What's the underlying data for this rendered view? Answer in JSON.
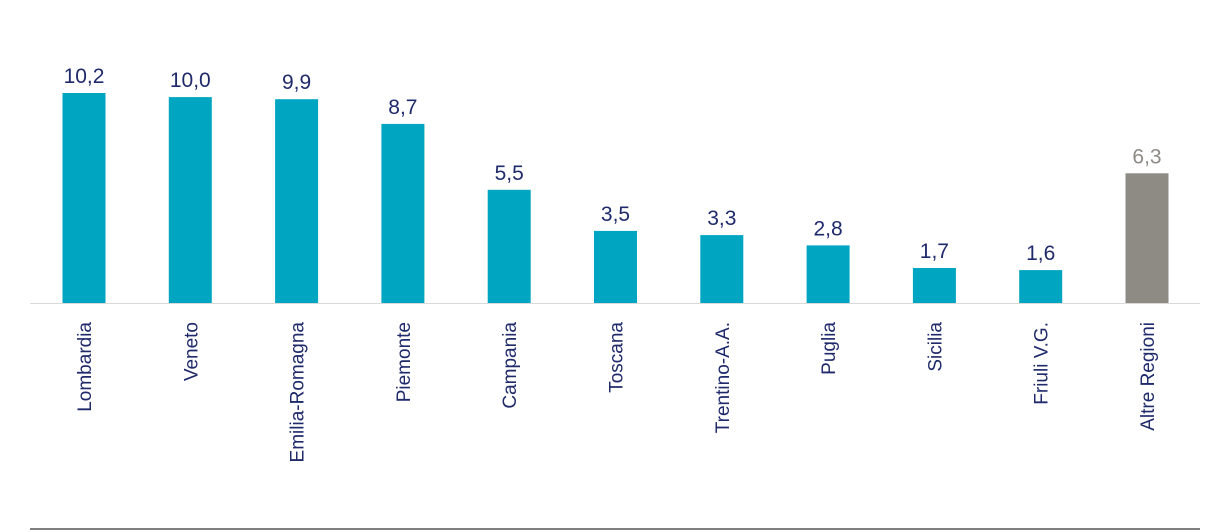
{
  "chart_data": {
    "type": "bar",
    "categories": [
      "Lombardia",
      "Veneto",
      "Emilia-Romagna",
      "Piemonte",
      "Campania",
      "Toscana",
      "Trentino-A.A.",
      "Puglia",
      "Sicilia",
      "Friuli V.G.",
      "Altre Regioni"
    ],
    "values": [
      10.2,
      10.0,
      9.9,
      8.7,
      5.5,
      3.5,
      3.3,
      2.8,
      1.7,
      1.6,
      6.3
    ],
    "value_labels": [
      "10,2",
      "10,0",
      "9,9",
      "8,7",
      "5,5",
      "3,5",
      "3,3",
      "2,8",
      "1,7",
      "1,6",
      "6,3"
    ],
    "ylim": [
      0,
      10.2
    ],
    "grid": false,
    "colors": {
      "main_bar": "#00a6c1",
      "other_bar": "#8e8b84",
      "main_label": "#1f2a6b",
      "other_label": "#8e8b84",
      "baseline": "#d9d9d9",
      "bottom_rule": "#7f7f7f"
    },
    "highlight_index": 10
  }
}
